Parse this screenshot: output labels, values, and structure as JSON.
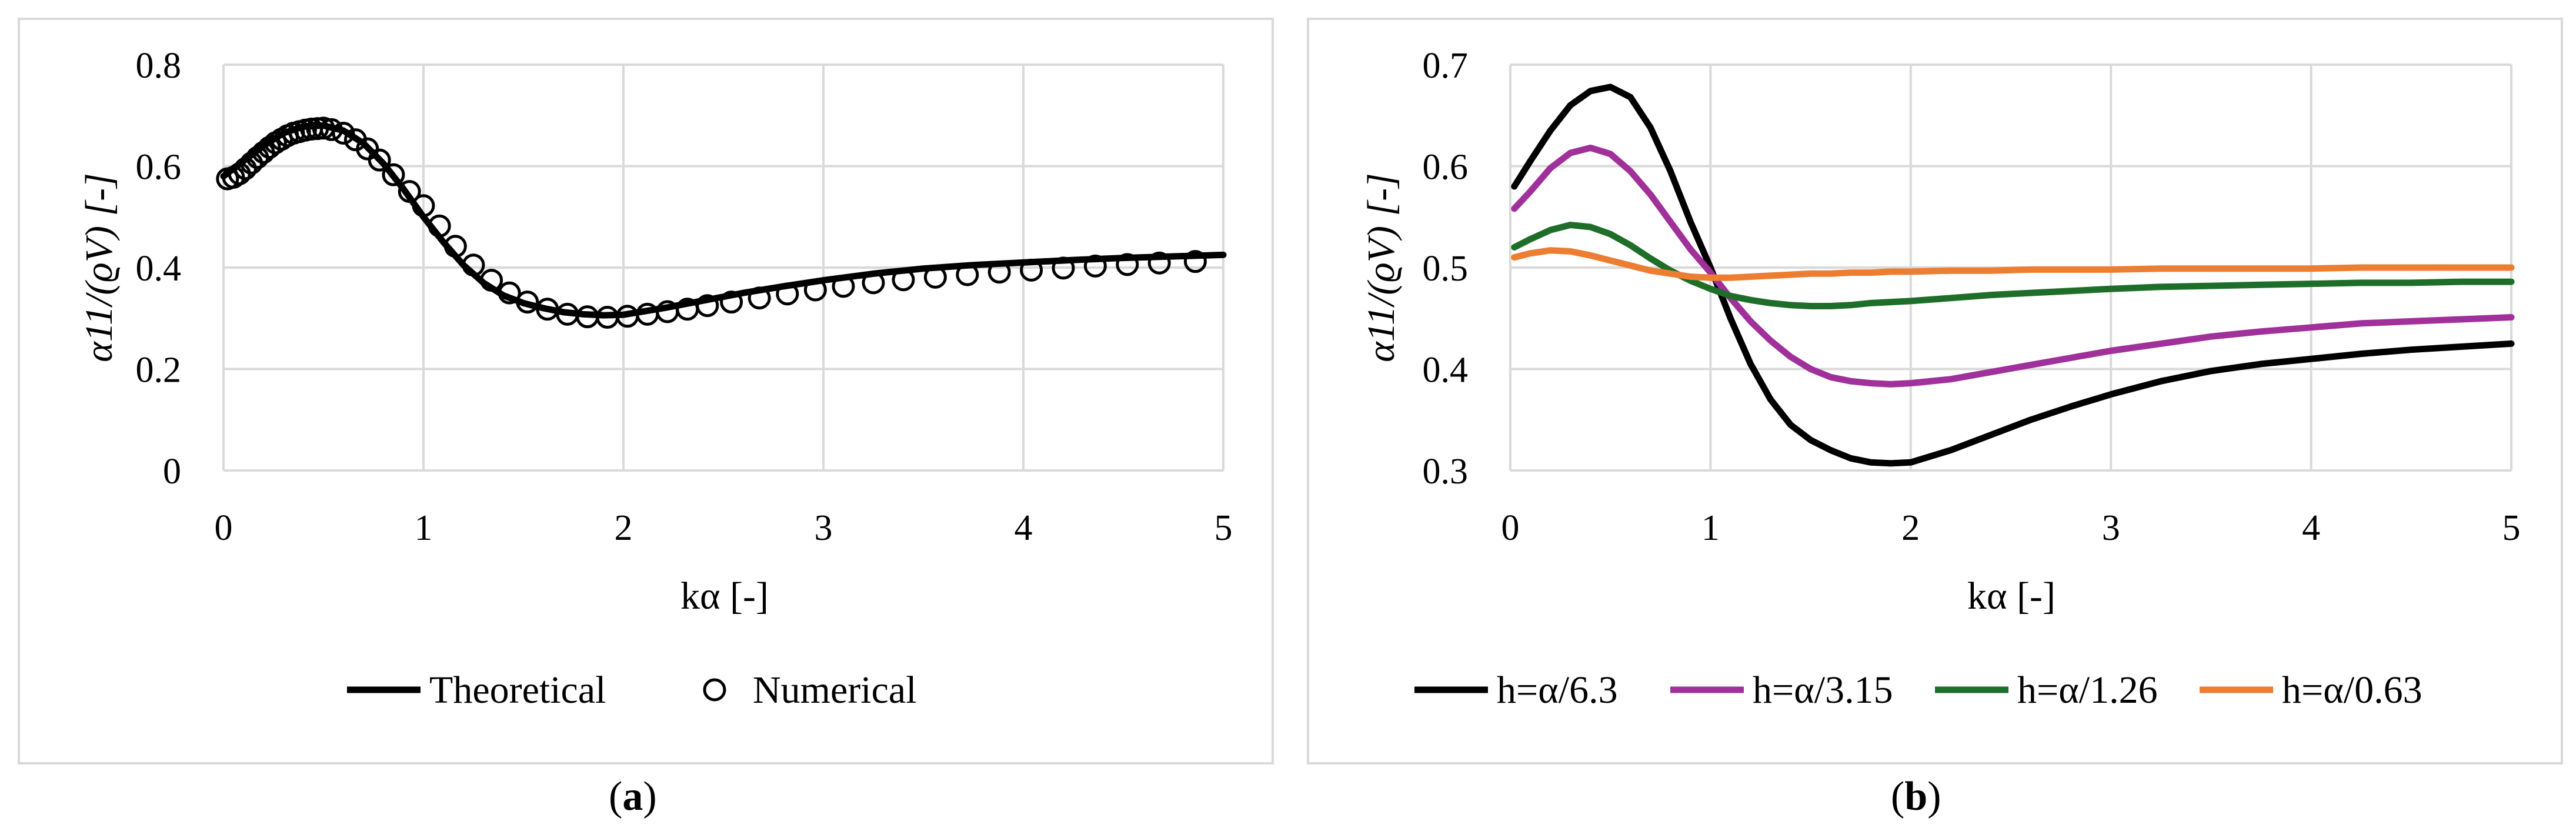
{
  "chart_data": [
    {
      "type": "line",
      "panel": "a",
      "caption": "a",
      "xlabel": "kα [-]",
      "ylabel": "α11/(ϱV) [-]",
      "xlim": [
        0,
        5
      ],
      "ylim": [
        0,
        0.8
      ],
      "xticks": [
        "0",
        "1",
        "2",
        "3",
        "4",
        "5"
      ],
      "yticks": [
        "0",
        "0.2",
        "0.4",
        "0.6",
        "0.8"
      ],
      "xtick_values": [
        0,
        1,
        2,
        3,
        4,
        5
      ],
      "ytick_values": [
        0,
        0.2,
        0.4,
        0.6,
        0.8
      ],
      "grid": true,
      "legend_position": "bottom",
      "series": [
        {
          "name": "Theoretical",
          "style": "line",
          "color": "#000000",
          "x": [
            0,
            0.1,
            0.2,
            0.3,
            0.4,
            0.5,
            0.6,
            0.7,
            0.8,
            0.9,
            1.0,
            1.1,
            1.2,
            1.3,
            1.4,
            1.5,
            1.6,
            1.7,
            1.8,
            1.9,
            2.0,
            2.2,
            2.4,
            2.6,
            2.8,
            3.0,
            3.25,
            3.5,
            3.75,
            4.0,
            4.25,
            4.5,
            4.75,
            5.0
          ],
          "y": [
            0.58,
            0.61,
            0.64,
            0.665,
            0.678,
            0.68,
            0.67,
            0.645,
            0.605,
            0.555,
            0.5,
            0.45,
            0.405,
            0.37,
            0.345,
            0.33,
            0.32,
            0.312,
            0.308,
            0.306,
            0.307,
            0.32,
            0.335,
            0.35,
            0.363,
            0.375,
            0.388,
            0.398,
            0.405,
            0.41,
            0.415,
            0.419,
            0.422,
            0.425
          ]
        },
        {
          "name": "Numerical",
          "style": "markers",
          "color": "#000000",
          "x": [
            0.02,
            0.05,
            0.08,
            0.11,
            0.14,
            0.17,
            0.2,
            0.23,
            0.26,
            0.29,
            0.32,
            0.35,
            0.38,
            0.41,
            0.44,
            0.47,
            0.5,
            0.54,
            0.6,
            0.66,
            0.72,
            0.78,
            0.85,
            0.93,
            1.0,
            1.08,
            1.16,
            1.25,
            1.34,
            1.43,
            1.52,
            1.62,
            1.72,
            1.82,
            1.92,
            2.02,
            2.12,
            2.22,
            2.32,
            2.42,
            2.54,
            2.68,
            2.82,
            2.96,
            3.1,
            3.25,
            3.4,
            3.56,
            3.72,
            3.88,
            4.04,
            4.2,
            4.36,
            4.52,
            4.68,
            4.86
          ],
          "y": [
            0.575,
            0.578,
            0.585,
            0.595,
            0.606,
            0.617,
            0.627,
            0.637,
            0.646,
            0.653,
            0.66,
            0.665,
            0.668,
            0.671,
            0.673,
            0.674,
            0.675,
            0.672,
            0.665,
            0.652,
            0.634,
            0.612,
            0.583,
            0.55,
            0.522,
            0.482,
            0.442,
            0.405,
            0.375,
            0.35,
            0.332,
            0.318,
            0.308,
            0.303,
            0.302,
            0.304,
            0.308,
            0.313,
            0.318,
            0.325,
            0.332,
            0.34,
            0.348,
            0.356,
            0.363,
            0.37,
            0.376,
            0.381,
            0.386,
            0.391,
            0.395,
            0.399,
            0.403,
            0.406,
            0.409,
            0.412
          ]
        }
      ]
    },
    {
      "type": "line",
      "panel": "b",
      "caption": "b",
      "xlabel": "kα [-]",
      "ylabel": "α11/(ϱV) [-]",
      "xlim": [
        0,
        5
      ],
      "ylim": [
        0.3,
        0.7
      ],
      "xticks": [
        "0",
        "1",
        "2",
        "3",
        "4",
        "5"
      ],
      "yticks": [
        "0.3",
        "0.4",
        "0.5",
        "0.6",
        "0.7"
      ],
      "xtick_values": [
        0,
        1,
        2,
        3,
        4,
        5
      ],
      "ytick_values": [
        0.3,
        0.4,
        0.5,
        0.6,
        0.7
      ],
      "grid": true,
      "legend_position": "bottom",
      "series": [
        {
          "name": "h=α/6.3",
          "style": "line",
          "color": "#000000",
          "x": [
            0.02,
            0.1,
            0.2,
            0.3,
            0.4,
            0.5,
            0.6,
            0.7,
            0.8,
            0.9,
            1.0,
            1.1,
            1.2,
            1.3,
            1.4,
            1.5,
            1.6,
            1.7,
            1.8,
            1.9,
            2.0,
            2.2,
            2.4,
            2.6,
            2.8,
            3.0,
            3.25,
            3.5,
            3.75,
            4.0,
            4.25,
            4.5,
            4.75,
            5.0
          ],
          "y": [
            0.58,
            0.605,
            0.635,
            0.66,
            0.674,
            0.678,
            0.668,
            0.638,
            0.595,
            0.545,
            0.5,
            0.45,
            0.405,
            0.37,
            0.345,
            0.33,
            0.32,
            0.312,
            0.308,
            0.307,
            0.308,
            0.32,
            0.335,
            0.35,
            0.363,
            0.375,
            0.388,
            0.398,
            0.405,
            0.41,
            0.415,
            0.419,
            0.422,
            0.425
          ]
        },
        {
          "name": "h=α/3.15",
          "style": "line",
          "color": "#a0309a",
          "x": [
            0.02,
            0.1,
            0.2,
            0.3,
            0.4,
            0.5,
            0.6,
            0.7,
            0.8,
            0.9,
            1.0,
            1.1,
            1.2,
            1.3,
            1.4,
            1.5,
            1.6,
            1.7,
            1.8,
            1.9,
            2.0,
            2.2,
            2.4,
            2.6,
            2.8,
            3.0,
            3.25,
            3.5,
            3.75,
            4.0,
            4.25,
            4.5,
            4.75,
            5.0
          ],
          "y": [
            0.558,
            0.575,
            0.598,
            0.613,
            0.618,
            0.612,
            0.595,
            0.572,
            0.545,
            0.518,
            0.495,
            0.47,
            0.447,
            0.428,
            0.412,
            0.4,
            0.392,
            0.388,
            0.386,
            0.385,
            0.386,
            0.39,
            0.397,
            0.404,
            0.411,
            0.418,
            0.425,
            0.432,
            0.437,
            0.441,
            0.445,
            0.447,
            0.449,
            0.451
          ]
        },
        {
          "name": "h=α/1.26",
          "style": "line",
          "color": "#1e6e2a",
          "x": [
            0.02,
            0.1,
            0.2,
            0.3,
            0.4,
            0.5,
            0.6,
            0.7,
            0.8,
            0.9,
            1.0,
            1.1,
            1.2,
            1.3,
            1.4,
            1.5,
            1.6,
            1.7,
            1.8,
            1.9,
            2.0,
            2.2,
            2.4,
            2.6,
            2.8,
            3.0,
            3.25,
            3.5,
            3.75,
            4.0,
            4.25,
            4.5,
            4.75,
            5.0
          ],
          "y": [
            0.52,
            0.528,
            0.537,
            0.542,
            0.54,
            0.533,
            0.522,
            0.509,
            0.497,
            0.487,
            0.479,
            0.472,
            0.468,
            0.465,
            0.463,
            0.462,
            0.462,
            0.463,
            0.465,
            0.466,
            0.467,
            0.47,
            0.473,
            0.475,
            0.477,
            0.479,
            0.481,
            0.482,
            0.483,
            0.484,
            0.485,
            0.485,
            0.486,
            0.486
          ]
        },
        {
          "name": "h=α/0.63",
          "style": "line",
          "color": "#ed7d31",
          "x": [
            0.02,
            0.1,
            0.2,
            0.3,
            0.4,
            0.5,
            0.6,
            0.7,
            0.8,
            0.9,
            1.0,
            1.1,
            1.2,
            1.3,
            1.4,
            1.5,
            1.6,
            1.7,
            1.8,
            1.9,
            2.0,
            2.2,
            2.4,
            2.6,
            2.8,
            3.0,
            3.25,
            3.5,
            3.75,
            4.0,
            4.25,
            4.5,
            4.75,
            5.0
          ],
          "y": [
            0.51,
            0.514,
            0.517,
            0.516,
            0.512,
            0.507,
            0.502,
            0.497,
            0.494,
            0.491,
            0.49,
            0.49,
            0.491,
            0.492,
            0.493,
            0.494,
            0.494,
            0.495,
            0.495,
            0.496,
            0.496,
            0.497,
            0.497,
            0.498,
            0.498,
            0.498,
            0.499,
            0.499,
            0.499,
            0.499,
            0.5,
            0.5,
            0.5,
            0.5
          ]
        }
      ]
    }
  ]
}
